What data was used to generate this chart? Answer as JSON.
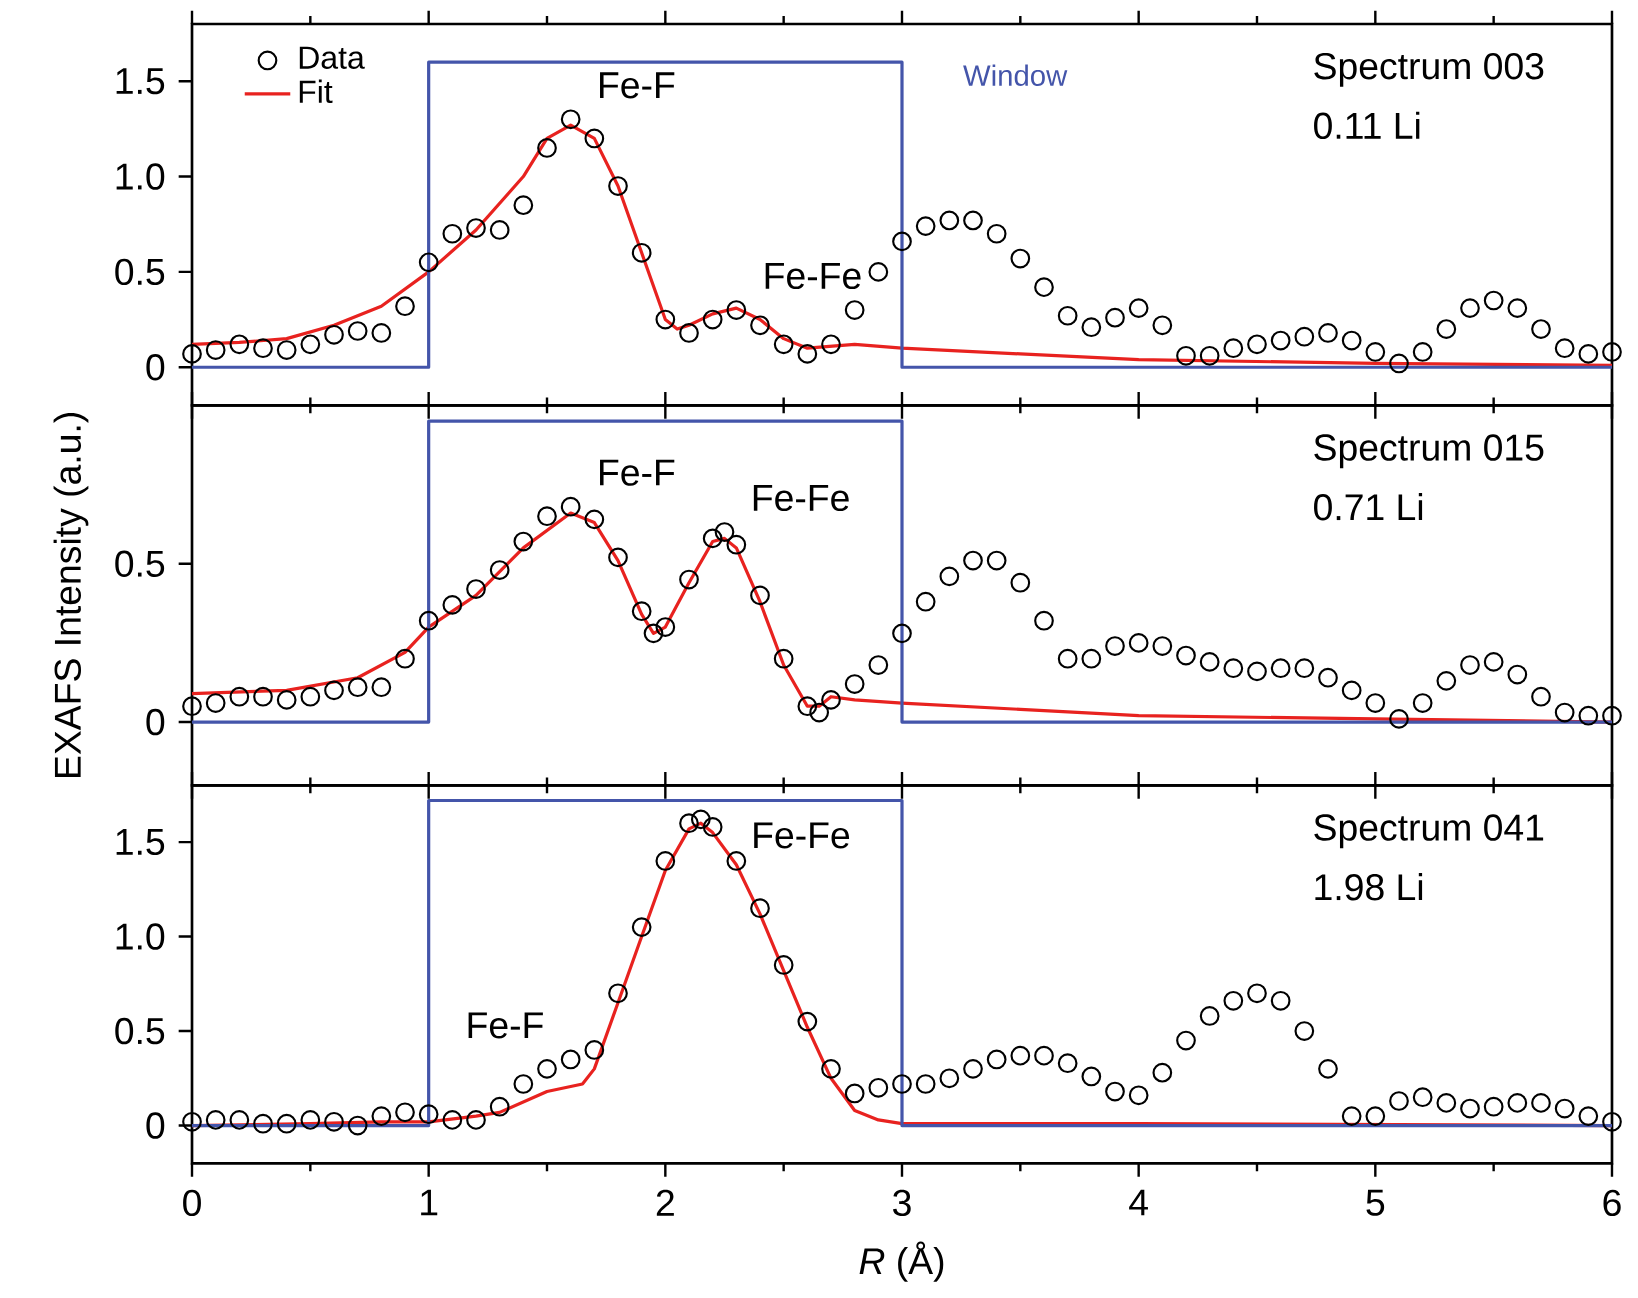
{
  "chart_data": [
    {
      "type": "scatter",
      "xlim": [
        0,
        6
      ],
      "ylim": [
        -0.2,
        1.8
      ],
      "xticks": [
        0,
        1,
        2,
        3,
        4,
        5,
        6
      ],
      "yticks": [
        0,
        0.5,
        {
          "value": 1.0,
          "label": "1.0"
        },
        1.5
      ],
      "tick_labels": "y",
      "legend": "top left",
      "annotations": [
        "Spectrum 003",
        "0.11 Li",
        {
          "text": "Fe-F",
          "x": 1.6,
          "y": 1.3
        },
        {
          "text": "Fe-Fe",
          "x": 2.3,
          "y": 0.3
        }
      ],
      "series": [
        {
          "name": "Data",
          "marker": "circle",
          "color": "#000000",
          "x": [
            0,
            0.1,
            0.2,
            0.3,
            0.4,
            0.5,
            0.6,
            0.7,
            0.8,
            0.9,
            1.0,
            1.1,
            1.2,
            1.3,
            1.4,
            1.5,
            1.6,
            1.7,
            1.8,
            1.9,
            2.0,
            2.1,
            2.2,
            2.3,
            2.4,
            2.5,
            2.6,
            2.7,
            2.8,
            2.9,
            3.0,
            3.1,
            3.2,
            3.3,
            3.4,
            3.5,
            3.6,
            3.7,
            3.8,
            3.9,
            4.0,
            4.1,
            4.2,
            4.3,
            4.4,
            4.5,
            4.6,
            4.7,
            4.8,
            4.9,
            5.0,
            5.1,
            5.2,
            5.3,
            5.4,
            5.5,
            5.6,
            5.7,
            5.8,
            5.9,
            6.0
          ],
          "values": [
            0.07,
            0.09,
            0.12,
            0.1,
            0.09,
            0.12,
            0.17,
            0.19,
            0.18,
            0.32,
            0.55,
            0.7,
            0.73,
            0.72,
            0.85,
            1.15,
            1.3,
            1.2,
            0.95,
            0.6,
            0.25,
            0.18,
            0.25,
            0.3,
            0.22,
            0.12,
            0.07,
            0.12,
            0.3,
            0.5,
            0.66,
            0.74,
            0.77,
            0.77,
            0.7,
            0.57,
            0.42,
            0.27,
            0.21,
            0.26,
            0.31,
            0.22,
            0.06,
            0.06,
            0.1,
            0.12,
            0.14,
            0.16,
            0.18,
            0.14,
            0.08,
            0.02,
            0.08,
            0.2,
            0.31,
            0.35,
            0.31,
            0.2,
            0.1,
            0.07,
            0.08
          ]
        },
        {
          "name": "Fit",
          "type": "line",
          "color": "#e8221f",
          "x": [
            0,
            0.2,
            0.4,
            0.6,
            0.8,
            1.0,
            1.2,
            1.4,
            1.5,
            1.6,
            1.7,
            1.8,
            1.9,
            2.0,
            2.05,
            2.1,
            2.2,
            2.3,
            2.4,
            2.5,
            2.6,
            2.8,
            3.0,
            3.5,
            4.0,
            5.0,
            6.0
          ],
          "values": [
            0.12,
            0.13,
            0.15,
            0.22,
            0.32,
            0.5,
            0.72,
            1.0,
            1.2,
            1.27,
            1.2,
            0.95,
            0.6,
            0.25,
            0.2,
            0.22,
            0.28,
            0.31,
            0.25,
            0.15,
            0.1,
            0.12,
            0.1,
            0.07,
            0.04,
            0.02,
            0.01
          ]
        },
        {
          "name": "Window",
          "type": "step",
          "color": "#4455aa",
          "x": [
            0,
            1,
            3,
            6
          ],
          "values": [
            0,
            1.6,
            0,
            0
          ]
        }
      ]
    },
    {
      "type": "scatter",
      "xlim": [
        0,
        6
      ],
      "ylim": [
        -0.2,
        1.0
      ],
      "xticks": [
        0,
        1,
        2,
        3,
        4,
        5,
        6
      ],
      "yticks": [
        0,
        0.5
      ],
      "tick_labels": "y",
      "ylabel": "EXAFS Intensity (a.u.)",
      "annotations": [
        "Spectrum 015",
        "0.71 Li",
        {
          "text": "Fe-F",
          "x": 1.6,
          "y": 0.68
        },
        {
          "text": "Fe-Fe",
          "x": 2.25,
          "y": 0.6
        }
      ],
      "series": [
        {
          "marker": "circle",
          "color": "#000000",
          "x": [
            0,
            0.1,
            0.2,
            0.3,
            0.4,
            0.5,
            0.6,
            0.7,
            0.8,
            0.9,
            1.0,
            1.1,
            1.2,
            1.3,
            1.4,
            1.5,
            1.6,
            1.7,
            1.8,
            1.9,
            1.95,
            2.0,
            2.1,
            2.2,
            2.25,
            2.3,
            2.4,
            2.5,
            2.6,
            2.65,
            2.7,
            2.8,
            2.9,
            3.0,
            3.1,
            3.2,
            3.3,
            3.4,
            3.5,
            3.6,
            3.7,
            3.8,
            3.9,
            4.0,
            4.1,
            4.2,
            4.3,
            4.4,
            4.5,
            4.6,
            4.7,
            4.8,
            4.9,
            5.0,
            5.1,
            5.2,
            5.3,
            5.4,
            5.5,
            5.6,
            5.7,
            5.8,
            5.9,
            6.0
          ],
          "values": [
            0.05,
            0.06,
            0.08,
            0.08,
            0.07,
            0.08,
            0.1,
            0.11,
            0.11,
            0.2,
            0.32,
            0.37,
            0.42,
            0.48,
            0.57,
            0.65,
            0.68,
            0.64,
            0.52,
            0.35,
            0.28,
            0.3,
            0.45,
            0.58,
            0.6,
            0.56,
            0.4,
            0.2,
            0.05,
            0.03,
            0.07,
            0.12,
            0.18,
            0.28,
            0.38,
            0.46,
            0.51,
            0.51,
            0.44,
            0.32,
            0.2,
            0.2,
            0.24,
            0.25,
            0.24,
            0.21,
            0.19,
            0.17,
            0.16,
            0.17,
            0.17,
            0.14,
            0.1,
            0.06,
            0.01,
            0.06,
            0.13,
            0.18,
            0.19,
            0.15,
            0.08,
            0.03,
            0.02,
            0.02
          ]
        },
        {
          "type": "line",
          "color": "#e8221f",
          "x": [
            0,
            0.4,
            0.7,
            0.9,
            1.0,
            1.2,
            1.4,
            1.6,
            1.7,
            1.8,
            1.9,
            1.95,
            2.0,
            2.1,
            2.2,
            2.25,
            2.3,
            2.4,
            2.5,
            2.6,
            2.65,
            2.7,
            2.8,
            3.0,
            3.5,
            4.0,
            5.0,
            6.0
          ],
          "values": [
            0.09,
            0.1,
            0.14,
            0.22,
            0.3,
            0.4,
            0.55,
            0.66,
            0.63,
            0.51,
            0.34,
            0.28,
            0.3,
            0.44,
            0.57,
            0.58,
            0.55,
            0.38,
            0.18,
            0.05,
            0.05,
            0.08,
            0.07,
            0.06,
            0.04,
            0.02,
            0.01,
            0.0
          ]
        },
        {
          "type": "step",
          "color": "#4455aa",
          "x": [
            0,
            1,
            3,
            6
          ],
          "values": [
            0,
            0.95,
            0,
            0
          ]
        }
      ]
    },
    {
      "type": "scatter",
      "xlim": [
        0,
        6
      ],
      "ylim": [
        -0.2,
        1.8
      ],
      "xticks": [
        0,
        1,
        2,
        3,
        4,
        5,
        6
      ],
      "yticks": [
        0,
        0.5,
        {
          "value": 1.0,
          "label": "1.0"
        },
        1.5
      ],
      "xlabel": "*R* (Å)",
      "annotations": [
        "Spectrum 041",
        "1.98 Li",
        {
          "text": "Fe-F",
          "x": 1.6,
          "y": 0.35
        },
        {
          "text": "Fe-Fe",
          "x": 2.15,
          "y": 1.62
        }
      ],
      "series": [
        {
          "marker": "circle",
          "color": "#000000",
          "x": [
            0,
            0.1,
            0.2,
            0.3,
            0.4,
            0.5,
            0.6,
            0.7,
            0.8,
            0.9,
            1.0,
            1.1,
            1.2,
            1.3,
            1.4,
            1.5,
            1.6,
            1.7,
            1.8,
            1.9,
            2.0,
            2.1,
            2.15,
            2.2,
            2.3,
            2.4,
            2.5,
            2.6,
            2.7,
            2.8,
            2.9,
            3.0,
            3.1,
            3.2,
            3.3,
            3.4,
            3.5,
            3.6,
            3.7,
            3.8,
            3.9,
            4.0,
            4.1,
            4.2,
            4.3,
            4.4,
            4.5,
            4.6,
            4.7,
            4.8,
            4.9,
            5.0,
            5.1,
            5.2,
            5.3,
            5.4,
            5.5,
            5.6,
            5.7,
            5.8,
            5.9,
            6.0
          ],
          "values": [
            0.02,
            0.03,
            0.03,
            0.01,
            0.01,
            0.03,
            0.02,
            0.0,
            0.05,
            0.07,
            0.06,
            0.03,
            0.03,
            0.1,
            0.22,
            0.3,
            0.35,
            0.4,
            0.7,
            1.05,
            1.4,
            1.6,
            1.62,
            1.58,
            1.4,
            1.15,
            0.85,
            0.55,
            0.3,
            0.17,
            0.2,
            0.22,
            0.22,
            0.25,
            0.3,
            0.35,
            0.37,
            0.37,
            0.33,
            0.26,
            0.18,
            0.16,
            0.28,
            0.45,
            0.58,
            0.66,
            0.7,
            0.66,
            0.5,
            0.3,
            0.05,
            0.05,
            0.13,
            0.15,
            0.12,
            0.09,
            0.1,
            0.12,
            0.12,
            0.09,
            0.05,
            0.02
          ]
        },
        {
          "type": "line",
          "color": "#e8221f",
          "x": [
            0,
            0.5,
            0.8,
            1.0,
            1.2,
            1.3,
            1.5,
            1.65,
            1.7,
            1.8,
            1.9,
            2.0,
            2.1,
            2.15,
            2.2,
            2.3,
            2.4,
            2.5,
            2.6,
            2.7,
            2.8,
            2.9,
            3.0,
            4.0,
            6.0
          ],
          "values": [
            0.0,
            0.01,
            0.02,
            0.02,
            0.05,
            0.07,
            0.18,
            0.22,
            0.3,
            0.65,
            1.0,
            1.35,
            1.57,
            1.6,
            1.55,
            1.38,
            1.12,
            0.82,
            0.52,
            0.25,
            0.08,
            0.03,
            0.01,
            0.01,
            0.0
          ]
        },
        {
          "type": "step",
          "color": "#4455aa",
          "x": [
            0,
            1,
            3,
            6
          ],
          "values": [
            0,
            1.72,
            0,
            0
          ]
        }
      ]
    }
  ]
}
